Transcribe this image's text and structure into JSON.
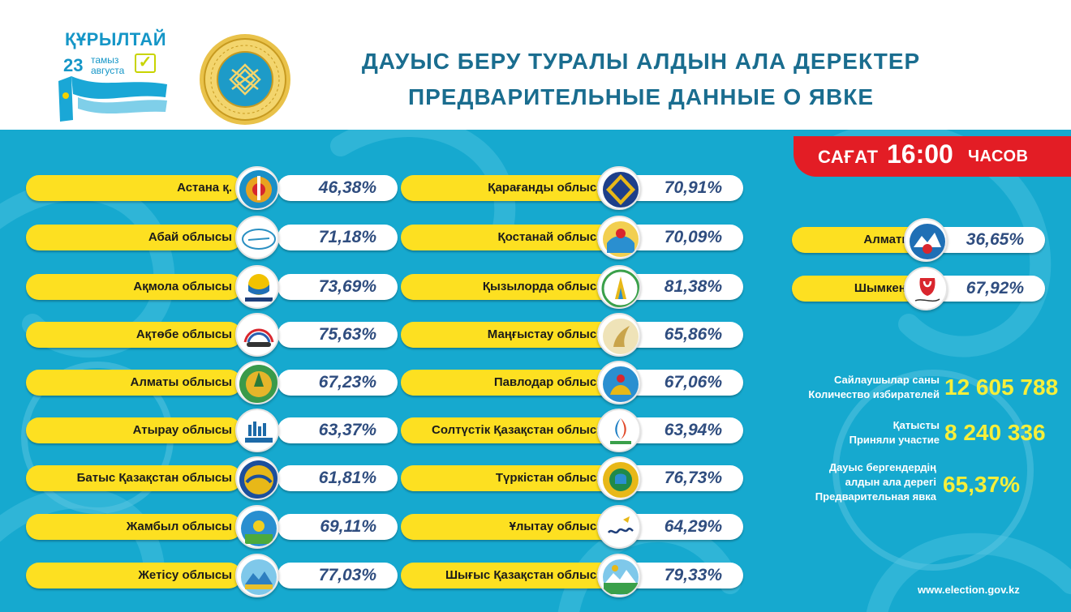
{
  "header": {
    "logo_title": "ҚҰРЫЛТАЙ",
    "logo_day": "23",
    "logo_month_kz": "тамыз",
    "logo_month_ru": "августа",
    "title_kz": "ДАУЫС БЕРУ ТУРАЛЫ АЛДЫН АЛА ДЕРЕКТЕР",
    "title_ru": "ПРЕДВАРИТЕЛЬНЫЕ ДАННЫЕ О ЯВКЕ"
  },
  "time_badge": {
    "prefix": "САҒАТ",
    "time": "16:00",
    "suffix": "ЧАСОВ"
  },
  "regions_col1": [
    {
      "name": "Астана  қ.",
      "pct": "46,38%",
      "turnout_percent": 46.38,
      "icon": "astana-emblem-icon"
    },
    {
      "name": "Абай облысы",
      "pct": "71,18%",
      "turnout_percent": 71.18,
      "icon": "abai-emblem-icon"
    },
    {
      "name": "Ақмола облысы",
      "pct": "73,69%",
      "turnout_percent": 73.69,
      "icon": "akmola-logo-icon"
    },
    {
      "name": "Ақтөбе облысы",
      "pct": "75,63%",
      "turnout_percent": 75.63,
      "icon": "aktobe-logo-icon"
    },
    {
      "name": "Алматы облысы",
      "pct": "67,23%",
      "turnout_percent": 67.23,
      "icon": "almaty-region-emblem-icon"
    },
    {
      "name": "Атырау  облысы",
      "pct": "63,37%",
      "turnout_percent": 63.37,
      "icon": "atyrau-logo-icon"
    },
    {
      "name": "Батыс Қазақстан  облысы",
      "pct": "61,81%",
      "turnout_percent": 61.81,
      "icon": "west-kazakhstan-emblem-icon"
    },
    {
      "name": "Жамбыл облысы",
      "pct": "69,11%",
      "turnout_percent": 69.11,
      "icon": "zhambyl-emblem-icon"
    },
    {
      "name": "Жетісу облысы",
      "pct": "77,03%",
      "turnout_percent": 77.03,
      "icon": "zhetisu-emblem-icon"
    }
  ],
  "regions_col2": [
    {
      "name": "Қарағанды облысы",
      "pct": "70,91%",
      "turnout_percent": 70.91,
      "icon": "karaganda-emblem-icon"
    },
    {
      "name": "Қостанай облысы",
      "pct": "70,09%",
      "turnout_percent": 70.09,
      "icon": "kostanay-emblem-icon"
    },
    {
      "name": "Қызылорда облысы",
      "pct": "81,38%",
      "turnout_percent": 81.38,
      "icon": "kyzylorda-emblem-icon"
    },
    {
      "name": "Маңғыстау облысы",
      "pct": "65,86%",
      "turnout_percent": 65.86,
      "icon": "mangystau-emblem-icon"
    },
    {
      "name": "Павлодар облысы",
      "pct": "67,06%",
      "turnout_percent": 67.06,
      "icon": "pavlodar-emblem-icon"
    },
    {
      "name": "Солтүстік Қазақстан облысы",
      "pct": "63,94%",
      "turnout_percent": 63.94,
      "icon": "north-kazakhstan-logo-icon"
    },
    {
      "name": "Түркістан облысы",
      "pct": "76,73%",
      "turnout_percent": 76.73,
      "icon": "turkistan-emblem-icon"
    },
    {
      "name": "Ұлытау облысы",
      "pct": "64,29%",
      "turnout_percent": 64.29,
      "icon": "ulytau-logo-icon"
    },
    {
      "name": "Шығыс Қазақстан облысы",
      "pct": "79,33%",
      "turnout_percent": 79.33,
      "icon": "east-kazakhstan-emblem-icon"
    }
  ],
  "cities": [
    {
      "name": "Алматы  қ.",
      "pct": "36,65%",
      "turnout_percent": 36.65,
      "icon": "almaty-city-emblem-icon"
    },
    {
      "name": "Шымкент қ.",
      "pct": "67,92%",
      "turnout_percent": 67.92,
      "icon": "shymkent-logo-icon"
    }
  ],
  "stats": {
    "voters_label_kz": "Сайлаушылар саны",
    "voters_label_ru": "Количество избирателей",
    "voters_value": "12 605 788",
    "participated_label_kz": "Қатысты",
    "participated_label_ru": "Приняли участие",
    "participated_value": "8 240 336",
    "turnout_label_kz_1": "Дауыс бергендердің",
    "turnout_label_kz_2": "алдын ала дерегі",
    "turnout_label_ru": "Предварительная явка",
    "turnout_value": "65,37%"
  },
  "footer": {
    "website": "www.election.gov.kz"
  },
  "colors": {
    "panel_blue": "#16a9cf",
    "pill_yellow": "#fde021",
    "badge_red": "#e31d25",
    "value_navy": "#2f4d7f",
    "stat_yellow": "#f6ef3a",
    "title_teal": "#1a6d8f"
  }
}
